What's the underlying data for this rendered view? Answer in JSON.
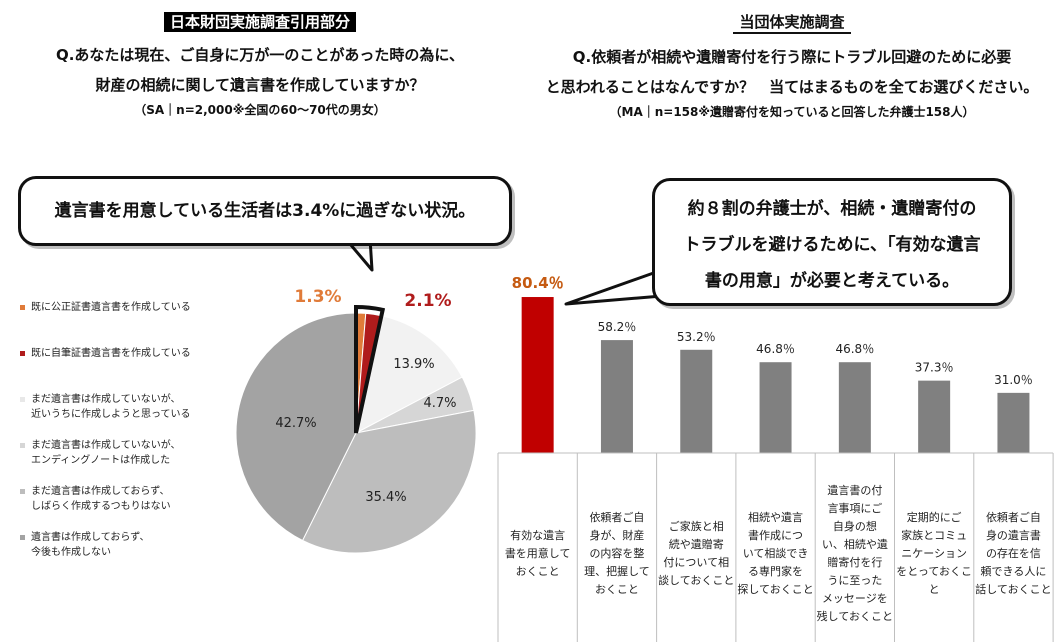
{
  "left_header": {
    "tag": "日本財団実施調査引用部分",
    "question": "Q.あなたは現在、ご自身に万が一のことがあった時の為に、",
    "question2": "財産の相続に関して遺言書を作成していますか？",
    "note": "（SA｜n=2,000※全国の60～70代の男女）"
  },
  "right_header": {
    "tag": "当団体実施調査",
    "question": "Q.依頼者が相続や遺贈寄付を行う際にトラブル回避のために必要",
    "question2": "と思われることはなんですか？　当てはまるものを全てお選びください。",
    "note": "（MA｜n=158※遺贈寄付を知っていると回答した弁護士158人）"
  },
  "left_bubble": "遺言書を用意している生活者は3.4%に過ぎない状況。",
  "right_bubble": [
    "約８割の弁護士が、相続・遺贈寄付の",
    "トラブルを避けるために、「有効な遺言",
    "書の用意」が必要と考えている。"
  ],
  "chart_data": [
    {
      "type": "pie",
      "slices": [
        {
          "label": "既に公正証書遺言書を作成している",
          "value": 1.3,
          "display": "1.3%",
          "color": "#e07b39"
        },
        {
          "label": "既に自筆証書遺言書を作成している",
          "value": 2.1,
          "display": "2.1%",
          "color": "#b01c1c"
        },
        {
          "label": "まだ遺言書は作成していないが、\n近いうちに作成しようと思っている",
          "value": 13.9,
          "display": "13.9%",
          "color": "#f2f2f2"
        },
        {
          "label": "まだ遺言書は作成していないが、\nエンディングノートは作成した",
          "value": 4.7,
          "display": "4.7%",
          "color": "#d6d6d6"
        },
        {
          "label": "まだ遺言書は作成しておらず、\nしばらく作成するつもりはない",
          "value": 35.4,
          "display": "35.4%",
          "color": "#bdbdbd"
        },
        {
          "label": "遺言書は作成しておらず、\n今後も作成しない",
          "value": 42.7,
          "display": "42.7%",
          "color": "#a3a3a3"
        }
      ]
    },
    {
      "type": "bar",
      "categories": [
        "有効な遺言\n書を用意して\nおくこと",
        "依頼者ご自\n身が、財産\nの内容を整\n理、把握して\nおくこと",
        "ご家族と相\n続や遺贈寄\n付について相\n談しておくこと",
        "相続や遺言\n書作成につ\nいて相談でき\nる専門家を\n探しておくこと",
        "遺言書の付\n言事項にご\n自身の想\nい、相続や遺\n贈寄付を行\nうに至った\nメッセージを\n残しておくこと",
        "定期的にご\n家族とコミュ\nニケーション\nをとっておくこ\nと",
        "依頼者ご自\n身の遺言書\nの存在を信\n頼できる人に\n話しておくこと"
      ],
      "values": [
        80.4,
        58.2,
        53.2,
        46.8,
        46.8,
        37.3,
        31.0
      ],
      "labels": [
        "80.4％",
        "58.2％",
        "53.2％",
        "46.8％",
        "46.8％",
        "37.3％",
        "31.0％"
      ],
      "colors": [
        "#c00000",
        "#808080",
        "#808080",
        "#808080",
        "#808080",
        "#808080",
        "#808080"
      ],
      "ylim": [
        0,
        100
      ]
    }
  ]
}
